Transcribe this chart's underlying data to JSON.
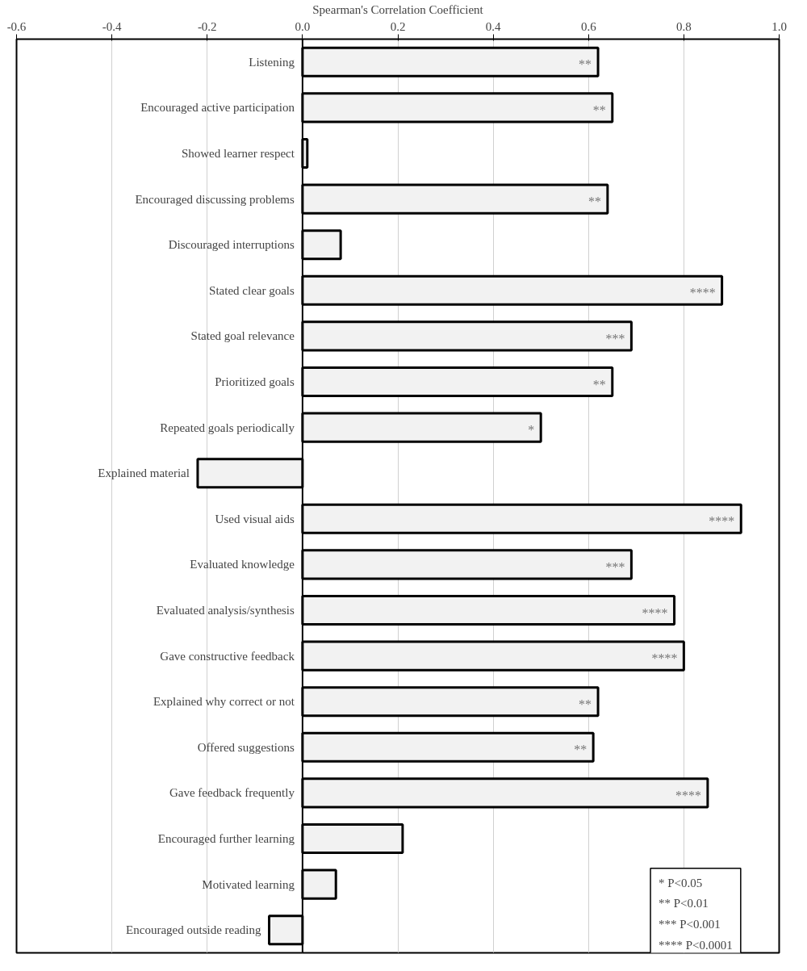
{
  "chart_data": {
    "type": "bar",
    "orientation": "horizontal",
    "xlabel": "Spearman's Correlation Coefficient",
    "categories": [
      "Listening",
      "Encouraged active participation",
      "Showed learner respect",
      "Encouraged discussing problems",
      "Discouraged interruptions",
      "Stated clear goals",
      "Stated goal relevance",
      "Prioritized goals",
      "Repeated goals periodically",
      "Explained material",
      "Used visual aids",
      "Evaluated knowledge",
      "Evaluated analysis/synthesis",
      "Gave constructive feedback",
      "Explained why correct or not",
      "Offered suggestions",
      "Gave feedback frequently",
      "Encouraged further learning",
      "Motivated learning",
      "Encouraged outside reading"
    ],
    "values": [
      0.62,
      0.65,
      0.01,
      0.64,
      0.08,
      0.88,
      0.69,
      0.65,
      0.5,
      -0.22,
      0.92,
      0.69,
      0.78,
      0.8,
      0.62,
      0.61,
      0.85,
      0.21,
      0.07,
      -0.07
    ],
    "value_labels": [
      "**",
      "**",
      null,
      "**",
      null,
      "****",
      "***",
      "**",
      "*",
      null,
      "****",
      "***",
      "****",
      "****",
      "**",
      "**",
      "****",
      null,
      null,
      null
    ],
    "color": "#f2f2f2",
    "xlim": [
      -0.6,
      1.0
    ],
    "xticks": [
      -0.6,
      -0.4,
      -0.2,
      {
        "value": 0,
        "label": "0.0"
      },
      0.2,
      0.4,
      0.6,
      0.8,
      {
        "value": 1,
        "label": "1.0"
      }
    ],
    "grid": "x",
    "annotations": [
      "*        P<0.05",
      "**      P<0.01",
      "***    P<0.001",
      "**** P<0.0001"
    ]
  }
}
